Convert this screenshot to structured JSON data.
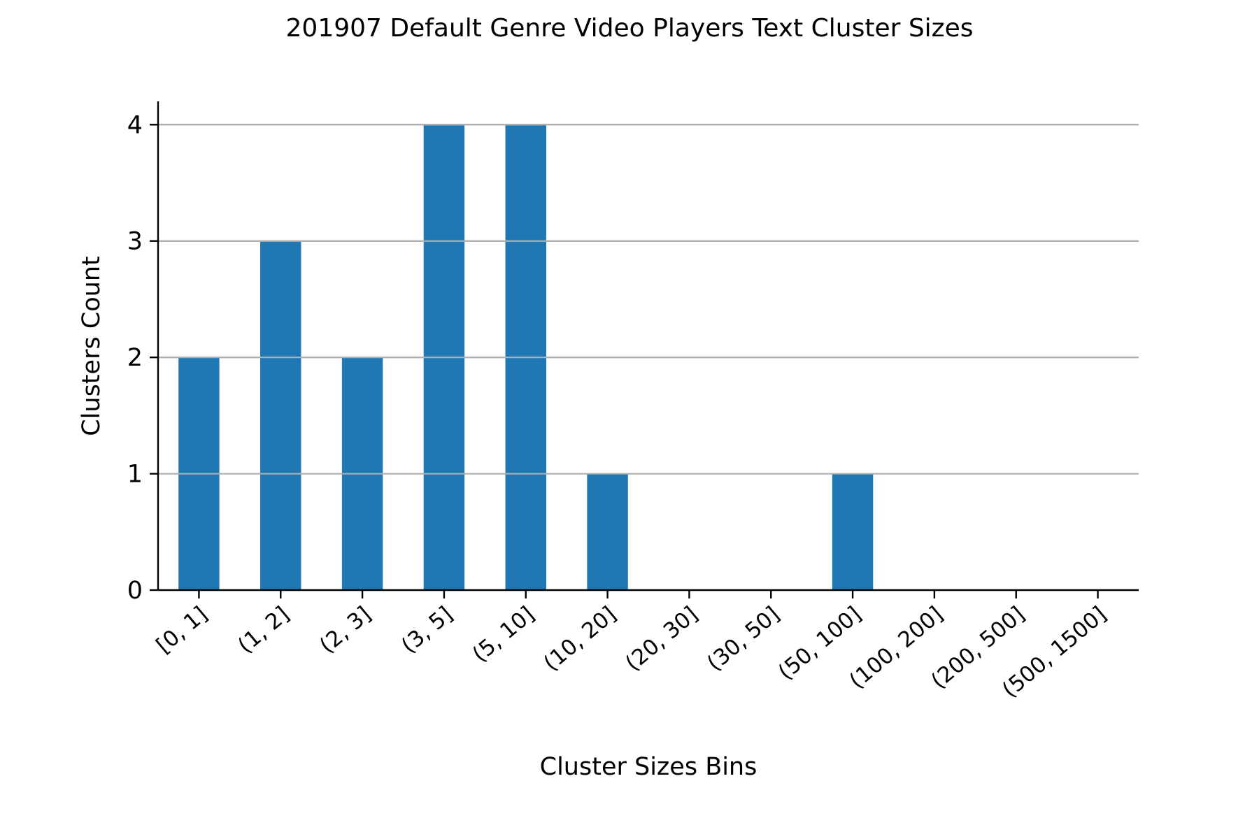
{
  "chart_data": {
    "type": "bar",
    "title": "201907 Default Genre Video Players Text Cluster Sizes",
    "xlabel": "Cluster Sizes Bins",
    "ylabel": "Clusters Count",
    "categories": [
      "[0, 1]",
      "(1, 2]",
      "(2, 3]",
      "(3, 5]",
      "(5, 10]",
      "(10, 20]",
      "(20, 30]",
      "(30, 50]",
      "(50, 100]",
      "(100, 200]",
      "(200, 500]",
      "(500, 1500]"
    ],
    "values": [
      2,
      3,
      2,
      4,
      4,
      1,
      0,
      0,
      1,
      0,
      0,
      0
    ],
    "ylim": [
      0,
      4.2
    ],
    "yticks": [
      0,
      1,
      2,
      3,
      4
    ],
    "grid": "horizontal",
    "legend": "none",
    "colors": {
      "bar": "#1f77b4",
      "grid": "#b0b0b0",
      "axis": "#000000"
    }
  }
}
